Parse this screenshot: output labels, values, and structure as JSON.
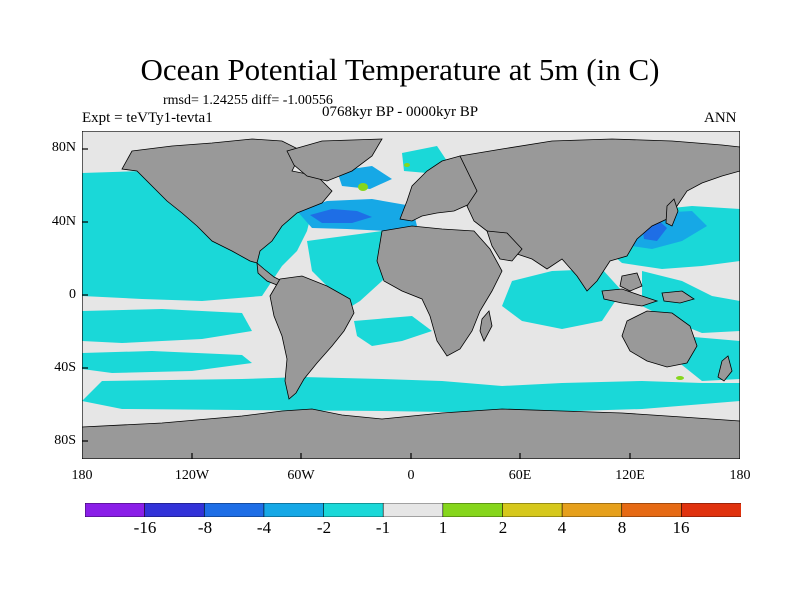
{
  "title": "Ocean Potential Temperature at 5m (in C)",
  "stats": "rmsd= 1.24255  diff= -1.00556",
  "experiment": "Expt = teVTy1-tevta1",
  "period": "0768kyr BP - 0000kyr BP",
  "season": "ANN",
  "y_axis": {
    "ticks": [
      "80N",
      "40N",
      "0",
      "40S",
      "80S"
    ]
  },
  "x_axis": {
    "ticks": [
      "180",
      "120W",
      "60W",
      "0",
      "60E",
      "120E",
      "180"
    ]
  },
  "colorbar": {
    "labels": [
      "-16",
      "-8",
      "-4",
      "-2",
      "-1",
      "1",
      "2",
      "4",
      "8",
      "16"
    ],
    "colors": [
      "#8a1ee8",
      "#3232d8",
      "#1e6ee6",
      "#16a8e6",
      "#1ad8d8",
      "#e6e6e6",
      "#86d61c",
      "#d6c81c",
      "#e6a01c",
      "#e66a14",
      "#e0320e"
    ]
  },
  "map_colors": {
    "land": "#999999",
    "ocean_neutral": "#e6e6e6",
    "cool_1": "#1ad8d8",
    "cool_2": "#16a8e6",
    "cool_3": "#1e6ee6",
    "warm_1": "#86d61c"
  }
}
